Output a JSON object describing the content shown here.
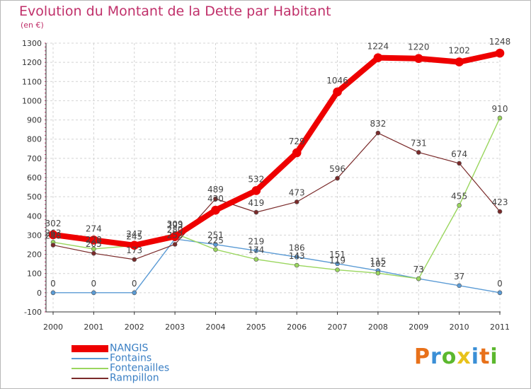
{
  "title": "Evolution du Montant de la Dette par Habitant",
  "subtitle": "(en €)",
  "logo": {
    "text": "Proxiti",
    "colors": [
      "#e8711a",
      "#3a8fd6",
      "#5cb82e",
      "#e8c21a",
      "#3a8fd6",
      "#e8711a",
      "#5cb82e"
    ]
  },
  "chart_data": {
    "type": "line",
    "x": [
      "2000",
      "2001",
      "2002",
      "2003",
      "2004",
      "2005",
      "2006",
      "2007",
      "2008",
      "2009",
      "2010",
      "2011"
    ],
    "ylim": [
      -100,
      1300
    ],
    "yticks": [
      -100,
      0,
      100,
      200,
      300,
      400,
      500,
      600,
      700,
      800,
      900,
      1000,
      1100,
      1200,
      1300
    ],
    "grid": true,
    "legend": "bottom-left",
    "series": [
      {
        "name": "NANGIS",
        "color": "#ee0000",
        "width": 8,
        "marker": 6,
        "values": [
          302,
          274,
          247,
          293,
          430,
          532,
          729,
          1046,
          1224,
          1220,
          1202,
          1248
        ],
        "labels": [
          "302",
          "274",
          "247",
          "293",
          "430",
          "532",
          "729",
          "1046",
          "1224",
          "1220",
          "1202",
          "1248"
        ]
      },
      {
        "name": "Fontains",
        "color": "#5b9bd5",
        "width": 1.4,
        "marker": 3,
        "values": [
          0,
          0,
          0,
          280,
          251,
          219,
          186,
          151,
          115,
          73,
          37,
          0
        ],
        "labels": [
          "0",
          "0",
          "0",
          "280",
          "251",
          "219",
          "186",
          "151",
          "115",
          "73",
          "37",
          "0"
        ]
      },
      {
        "name": "Fontenailles",
        "color": "#9ad65e",
        "width": 1.4,
        "marker": 3,
        "values": [
          263,
          228,
          245,
          309,
          225,
          174,
          143,
          119,
          102,
          73,
          455,
          910
        ],
        "labels": [
          "263",
          "228",
          "245",
          "309",
          "225",
          "174",
          "143",
          "119",
          "102",
          "73",
          "455",
          "910"
        ]
      },
      {
        "name": "Rampillon",
        "color": "#7a2a2a",
        "width": 1.2,
        "marker": 3,
        "values": [
          248,
          205,
          173,
          252,
          489,
          419,
          473,
          596,
          832,
          731,
          674,
          423
        ],
        "labels": [
          "248",
          "205",
          "173",
          "252",
          "489",
          "419",
          "473",
          "596",
          "832",
          "731",
          "674",
          "423"
        ]
      }
    ]
  }
}
